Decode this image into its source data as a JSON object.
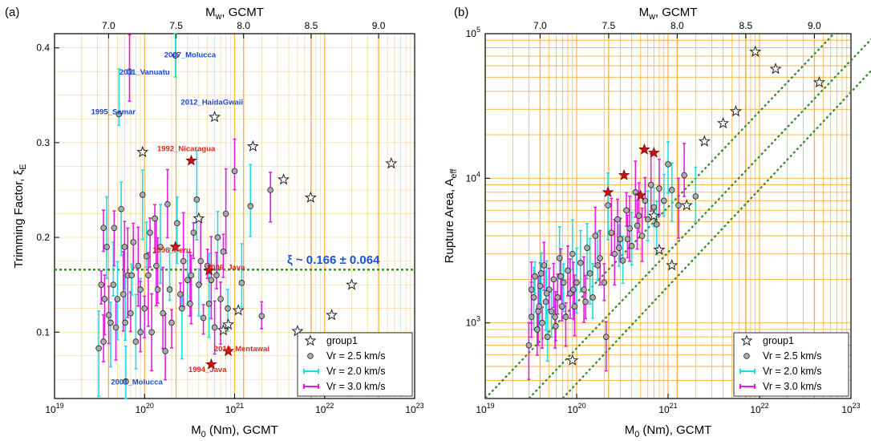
{
  "colors": {
    "grid": "#f5b13d",
    "fit_line": "#2e8b22",
    "guide_lines": "#2e8b22",
    "vr25": "#aaaaaa",
    "vr20": "#1fdde4",
    "vr30": "#e020e0",
    "star_group1": "#ffffff",
    "star_labeled": "#c4161c",
    "label_red": "#e0231b",
    "label_blue": "#1a49d6",
    "annotation": "#1a53d6"
  },
  "chart_data": [
    {
      "panel_label": "(a)",
      "type": "scatter",
      "xlabel": "M0 (Nm), GCMT",
      "xlabel_parts": [
        "M",
        "0",
        " (Nm), GCMT"
      ],
      "top_xlabel_parts": [
        "M",
        "w",
        ", GCMT"
      ],
      "ylabel_parts": [
        "Trimming Factor, ξ",
        "E"
      ],
      "x_log": true,
      "xlim": [
        1e+19,
        1e+23
      ],
      "ylim": [
        0.03,
        0.415
      ],
      "x_tick_labels": [
        {
          "base": "10",
          "exp": "19",
          "v": 1e+19
        },
        {
          "base": "10",
          "exp": "20",
          "v": 1e+20
        },
        {
          "base": "10",
          "exp": "21",
          "v": 1e+21
        },
        {
          "base": "10",
          "exp": "22",
          "v": 1e+22
        },
        {
          "base": "10",
          "exp": "23",
          "v": 1e+23
        }
      ],
      "top_ticks": [
        {
          "label": "7.0",
          "mw": 7.0
        },
        {
          "label": "7.5",
          "mw": 7.5
        },
        {
          "label": "8.0",
          "mw": 8.0
        },
        {
          "label": "8.5",
          "mw": 8.5
        },
        {
          "label": "9.0",
          "mw": 9.0
        }
      ],
      "y_ticks": [
        {
          "label": "0.1",
          "v": 0.1
        },
        {
          "label": "0.2",
          "v": 0.2
        },
        {
          "label": "0.3",
          "v": 0.3
        },
        {
          "label": "0.4",
          "v": 0.4
        }
      ],
      "annotation": "ξ ~ 0.166 ± 0.064",
      "fit_value": 0.166,
      "legend": [
        "group1",
        "Vr = 2.5 km/s",
        "Vr = 2.0 km/s",
        "Vr = 3.0 km/s"
      ],
      "points_vr25": [
        [
          3.1e+19,
          0.083
        ],
        [
          3.3e+19,
          0.15
        ],
        [
          3.5e+19,
          0.21
        ],
        [
          3.6e+19,
          0.135
        ],
        [
          3.8e+19,
          0.19
        ],
        [
          4e+19,
          0.118
        ],
        [
          4.2e+19,
          0.11
        ],
        [
          4.5e+19,
          0.15
        ],
        [
          4.8e+19,
          0.105
        ],
        [
          5e+19,
          0.135
        ],
        [
          5.2e+19,
          0.33
        ],
        [
          5.5e+19,
          0.23
        ],
        [
          5.8e+19,
          0.14
        ],
        [
          6e+19,
          0.19
        ],
        [
          6.2e+19,
          0.048
        ],
        [
          6.5e+19,
          0.16
        ],
        [
          6.8e+19,
          0.375
        ],
        [
          7e+19,
          0.12
        ],
        [
          7.5e+19,
          0.195
        ],
        [
          8e+19,
          0.09
        ],
        [
          8.5e+19,
          0.17
        ],
        [
          9e+19,
          0.145
        ],
        [
          9.5e+19,
          0.245
        ],
        [
          1e+20,
          0.125
        ],
        [
          1.05e+20,
          0.18
        ],
        [
          1.1e+20,
          0.16
        ],
        [
          1.2e+20,
          0.1
        ],
        [
          1.3e+20,
          0.22
        ],
        [
          1.4e+20,
          0.145
        ],
        [
          1.5e+20,
          0.19
        ],
        [
          1.6e+20,
          0.12
        ],
        [
          1.7e+20,
          0.08
        ],
        [
          1.8e+20,
          0.235
        ],
        [
          2e+20,
          0.11
        ],
        [
          2.2e+20,
          0.392
        ],
        [
          2.3e+20,
          0.215
        ],
        [
          2.5e+20,
          0.14
        ],
        [
          2.7e+20,
          0.175
        ],
        [
          3e+20,
          0.155
        ],
        [
          3.2e+20,
          0.13
        ],
        [
          3.5e+20,
          0.205
        ],
        [
          3.8e+20,
          0.24
        ],
        [
          4e+20,
          0.15
        ],
        [
          4.5e+20,
          0.115
        ],
        [
          5e+20,
          0.17
        ],
        [
          5.5e+20,
          0.155
        ],
        [
          6e+20,
          0.105
        ],
        [
          6.5e+20,
          0.2
        ],
        [
          7e+20,
          0.135
        ],
        [
          7.5e+20,
          0.185
        ],
        [
          8e+20,
          0.225
        ],
        [
          1e+21,
          0.27
        ],
        [
          1.2e+21,
          0.152
        ],
        [
          1.5e+21,
          0.233
        ],
        [
          2e+21,
          0.117
        ],
        [
          2.5e+21,
          0.25
        ],
        [
          3.5e+19,
          0.09
        ],
        [
          4.6e+19,
          0.21
        ],
        [
          6.1e+19,
          0.11
        ],
        [
          7.2e+19,
          0.16
        ],
        [
          9e+19,
          0.1
        ],
        [
          1.15e+20,
          0.205
        ],
        [
          1.35e+20,
          0.17
        ],
        [
          1.9e+20,
          0.145
        ],
        [
          2.6e+20,
          0.125
        ],
        [
          3.3e+20,
          0.16
        ],
        [
          4.2e+20,
          0.175
        ],
        [
          5.2e+20,
          0.13
        ],
        [
          6.3e+20,
          0.16
        ],
        [
          8.4e+20,
          0.125
        ]
      ],
      "stars_group1": [
        [
          9.5e+19,
          0.29
        ],
        [
          4e+20,
          0.22
        ],
        [
          6e+20,
          0.327
        ],
        [
          7.5e+20,
          0.102
        ],
        [
          8.5e+20,
          0.108
        ],
        [
          1.1e+21,
          0.123
        ],
        [
          1.6e+21,
          0.296
        ],
        [
          3.5e+21,
          0.261
        ],
        [
          5e+21,
          0.101
        ],
        [
          7e+21,
          0.242
        ],
        [
          1.2e+22,
          0.118
        ],
        [
          2e+22,
          0.15
        ],
        [
          5.5e+22,
          0.278
        ]
      ],
      "stars_labeled": [
        {
          "x": 2.2e+20,
          "y": 0.19
        },
        {
          "x": 3.3e+20,
          "y": 0.281
        },
        {
          "x": 5.5e+20,
          "y": 0.066
        },
        {
          "x": 5.2e+20,
          "y": 0.165
        },
        {
          "x": 8.5e+20,
          "y": 0.08
        }
      ],
      "event_labels": [
        {
          "text": "2011_Vanuatu",
          "x": 1e+20,
          "y": 0.372,
          "color": "blue"
        },
        {
          "text": "2007_Molucca",
          "x": 3.2e+20,
          "y": 0.39,
          "color": "blue"
        },
        {
          "text": "1995_Samar",
          "x": 4.5e+19,
          "y": 0.33,
          "color": "blue"
        },
        {
          "text": "2012_HaidaGwaii",
          "x": 5.6e+20,
          "y": 0.34,
          "color": "blue"
        },
        {
          "text": "1992_Nicaragua",
          "x": 2.9e+20,
          "y": 0.291,
          "color": "red"
        },
        {
          "text": "1996_Peru",
          "x": 2e+20,
          "y": 0.184,
          "color": "red"
        },
        {
          "text": "2006_Java",
          "x": 8e+20,
          "y": 0.166,
          "color": "red"
        },
        {
          "text": "2010_Mentawai",
          "x": 1.2e+21,
          "y": 0.08,
          "color": "red"
        },
        {
          "text": "1994_Java",
          "x": 5e+20,
          "y": 0.058,
          "color": "red"
        },
        {
          "text": "2001_Molucca",
          "x": 8.2e+19,
          "y": 0.045,
          "color": "blue"
        }
      ]
    },
    {
      "panel_label": "(b)",
      "type": "scatter",
      "xlabel_parts": [
        "M",
        "0",
        " (Nm), GCMT"
      ],
      "top_xlabel_parts": [
        "M",
        "w",
        ", GCMT"
      ],
      "ylabel_parts": [
        "Rupture Area, A",
        "eff"
      ],
      "x_log": true,
      "y_log": true,
      "xlim": [
        1e+19,
        1e+23
      ],
      "ylim": [
        300,
        100000
      ],
      "x_tick_labels": [
        {
          "base": "10",
          "exp": "19",
          "v": 1e+19
        },
        {
          "base": "10",
          "exp": "20",
          "v": 1e+20
        },
        {
          "base": "10",
          "exp": "21",
          "v": 1e+21
        },
        {
          "base": "10",
          "exp": "22",
          "v": 1e+22
        },
        {
          "base": "10",
          "exp": "23",
          "v": 1e+23
        }
      ],
      "top_ticks": [
        {
          "label": "7.0",
          "mw": 7.0
        },
        {
          "label": "7.5",
          "mw": 7.5
        },
        {
          "label": "8.0",
          "mw": 8.0
        },
        {
          "label": "8.5",
          "mw": 8.5
        },
        {
          "label": "9.0",
          "mw": 9.0
        }
      ],
      "y_ticks": [
        {
          "base": "10",
          "exp": "3",
          "v": 1000
        },
        {
          "base": "10",
          "exp": "4",
          "v": 10000
        },
        {
          "base": "10",
          "exp": "5",
          "v": 100000
        }
      ],
      "guide_lines": [
        [
          [
            1e+19,
            300
          ],
          [
            6.5e+22,
            100000
          ]
        ],
        [
          [
            3e+19,
            300
          ],
          [
            1.9e+23,
            100000
          ]
        ],
        [
          [
            7e+19,
            300
          ],
          [
            4e+23,
            100000
          ]
        ]
      ],
      "legend": [
        "group1",
        "Vr = 2.5 km/s",
        "Vr = 2.0 km/s",
        "Vr = 3.0 km/s"
      ],
      "points_vr25": [
        [
          3e+19,
          700
        ],
        [
          3.2e+19,
          1100
        ],
        [
          3.4e+19,
          1500
        ],
        [
          3.5e+19,
          2100
        ],
        [
          3.7e+19,
          900
        ],
        [
          3.9e+19,
          1300
        ],
        [
          4e+19,
          1800
        ],
        [
          4.2e+19,
          1000
        ],
        [
          4.4e+19,
          2500
        ],
        [
          4.6e+19,
          1400
        ],
        [
          4.8e+19,
          800
        ],
        [
          5e+19,
          1700
        ],
        [
          5.3e+19,
          1200
        ],
        [
          5.6e+19,
          2000
        ],
        [
          5.9e+19,
          950
        ],
        [
          6.2e+19,
          1500
        ],
        [
          6.5e+19,
          2800
        ],
        [
          6.9e+19,
          1300
        ],
        [
          7.2e+19,
          1900
        ],
        [
          7.6e+19,
          1100
        ],
        [
          8e+19,
          2300
        ],
        [
          8.5e+19,
          1600
        ],
        [
          9e+19,
          3000
        ],
        [
          9.5e+19,
          1300
        ],
        [
          1e+20,
          1900
        ],
        [
          1.1e+20,
          2600
        ],
        [
          1.2e+20,
          1700
        ],
        [
          1.3e+20,
          3300
        ],
        [
          1.4e+20,
          2200
        ],
        [
          1.5e+20,
          1500
        ],
        [
          1.6e+20,
          4000
        ],
        [
          1.8e+20,
          2800
        ],
        [
          2e+20,
          1900
        ],
        [
          2.2e+20,
          6500
        ],
        [
          2.4e+20,
          4200
        ],
        [
          2.6e+20,
          3000
        ],
        [
          2.8e+20,
          5200
        ],
        [
          3e+20,
          3800
        ],
        [
          3.2e+20,
          2700
        ],
        [
          3.5e+20,
          6000
        ],
        [
          3.8e+20,
          4500
        ],
        [
          4e+20,
          3400
        ],
        [
          4.4e+20,
          8000
        ],
        [
          4.8e+20,
          5500
        ],
        [
          5.2e+20,
          4000
        ],
        [
          5.6e+20,
          7000
        ],
        [
          6e+20,
          5200
        ],
        [
          6.5e+20,
          9000
        ],
        [
          7e+20,
          6300
        ],
        [
          7.5e+20,
          4800
        ],
        [
          8e+20,
          8500
        ],
        [
          9e+20,
          7000
        ],
        [
          1e+21,
          12500
        ],
        [
          1.1e+21,
          8300
        ],
        [
          1.3e+21,
          6500
        ],
        [
          1.5e+21,
          10500
        ],
        [
          2e+21,
          7500
        ],
        [
          3.2e+19,
          1700
        ],
        [
          3.8e+19,
          1200
        ],
        [
          4.1e+19,
          2200
        ],
        [
          4.7e+19,
          1600
        ],
        [
          5.8e+19,
          1100
        ],
        [
          6.7e+19,
          2100
        ],
        [
          9.2e+19,
          1700
        ],
        [
          1.25e+20,
          1400
        ],
        [
          1.7e+20,
          2500
        ],
        [
          2.1e+20,
          800
        ],
        [
          2.9e+20,
          3300
        ],
        [
          3.6e+20,
          3800
        ],
        [
          4.6e+20,
          4700
        ]
      ],
      "stars_group1": [
        [
          9e+19,
          550
        ],
        [
          7e+20,
          5500
        ],
        [
          8e+20,
          3200
        ],
        [
          1.1e+21,
          2500
        ],
        [
          1.6e+21,
          6500
        ],
        [
          2.5e+21,
          18000
        ],
        [
          4e+21,
          24000
        ],
        [
          5.5e+21,
          29000
        ],
        [
          9e+21,
          75000
        ],
        [
          1.5e+22,
          57000
        ],
        [
          4.5e+22,
          46000
        ]
      ],
      "stars_labeled": [
        {
          "x": 2.2e+20,
          "y": 8000
        },
        {
          "x": 3.3e+20,
          "y": 10500
        },
        {
          "x": 5.5e+20,
          "y": 15800
        },
        {
          "x": 5e+20,
          "y": 7600
        },
        {
          "x": 7e+20,
          "y": 15000
        }
      ]
    }
  ]
}
